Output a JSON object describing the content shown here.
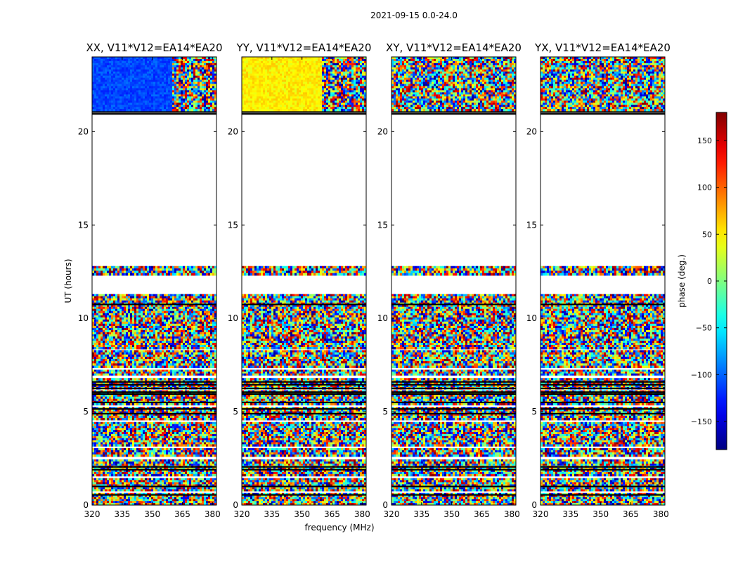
{
  "figure_title": "2021-09-15 0.0-24.0",
  "colors": {
    "background": "#ffffff",
    "axes": "#000000",
    "flag_line": "#000000"
  },
  "colormap": "jet",
  "chart_data": {
    "type": "heatmap",
    "title": "2021-09-15 0.0-24.0",
    "xlabel": "frequency (MHz)",
    "ylabel": "UT (hours)",
    "xlim": [
      320,
      382
    ],
    "ylim": [
      0,
      24
    ],
    "xticks": [
      320,
      335,
      350,
      365,
      380
    ],
    "yticks": [
      0,
      5,
      10,
      15,
      20
    ],
    "colorbar": {
      "label": "phase (deg.)",
      "range": [
        -180,
        180
      ],
      "ticks": [
        -150,
        -100,
        -50,
        0,
        50,
        100,
        150
      ]
    },
    "panels": [
      {
        "title": "XX, V11*V12=EA14*EA20",
        "pol": "XX",
        "mode": "coherent",
        "coherent_phase_deg": -110,
        "coherent_freq_range": [
          320,
          360
        ],
        "coherent_ut_range": [
          21.1,
          24
        ]
      },
      {
        "title": "YY, V11*V12=EA14*EA20",
        "pol": "YY",
        "mode": "coherent",
        "coherent_phase_deg": 50,
        "coherent_freq_range": [
          320,
          360
        ],
        "coherent_ut_range": [
          21.1,
          24
        ]
      },
      {
        "title": "XY, V11*V12=EA14*EA20",
        "pol": "XY",
        "mode": "noise"
      },
      {
        "title": "YX, V11*V12=EA14*EA20",
        "pol": "YX",
        "mode": "noise"
      }
    ],
    "data_ut_ranges": [
      [
        0.0,
        0.65
      ],
      [
        0.75,
        0.95
      ],
      [
        1.0,
        1.45
      ],
      [
        1.55,
        2.45
      ],
      [
        2.6,
        3.05
      ],
      [
        3.15,
        4.45
      ],
      [
        4.55,
        5.25
      ],
      [
        5.35,
        6.15
      ],
      [
        6.2,
        6.8
      ],
      [
        6.95,
        7.25
      ],
      [
        7.35,
        8.3
      ],
      [
        8.35,
        11.3
      ],
      [
        12.3,
        12.8
      ],
      [
        21.1,
        24.0
      ]
    ],
    "black_flag_lines_ut": [
      0.55,
      1.0,
      1.9,
      2.05,
      4.9,
      5.15,
      5.5,
      5.95,
      6.05,
      6.25,
      6.45,
      6.6,
      10.75,
      20.95,
      21.05
    ]
  }
}
